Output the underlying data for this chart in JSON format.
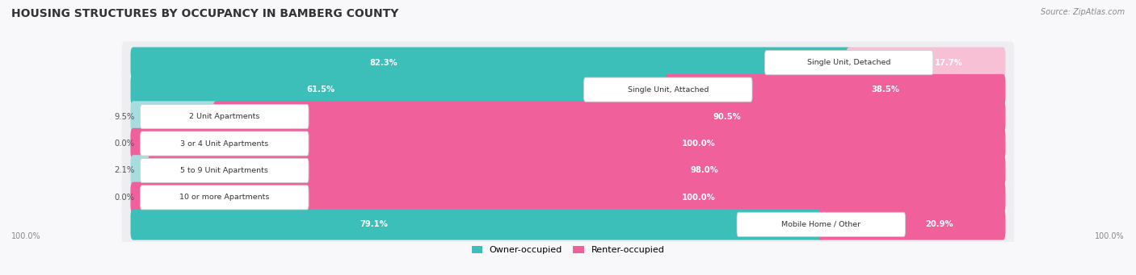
{
  "title": "HOUSING STRUCTURES BY OCCUPANCY IN BAMBERG COUNTY",
  "source": "Source: ZipAtlas.com",
  "categories": [
    "Single Unit, Detached",
    "Single Unit, Attached",
    "2 Unit Apartments",
    "3 or 4 Unit Apartments",
    "5 to 9 Unit Apartments",
    "10 or more Apartments",
    "Mobile Home / Other"
  ],
  "owner_values": [
    82.3,
    61.5,
    9.5,
    0.0,
    2.1,
    0.0,
    79.1
  ],
  "renter_values": [
    17.7,
    38.5,
    90.5,
    100.0,
    98.0,
    100.0,
    20.9
  ],
  "owner_color": "#3BBFB8",
  "renter_color": "#F0609A",
  "owner_color_light": "#A8DDE0",
  "renter_color_light": "#F8C0D4",
  "row_bg_color": "#EDEDF2",
  "figsize": [
    14.06,
    3.41
  ],
  "dpi": 100,
  "legend_owner_label": "Owner-occupied",
  "legend_renter_label": "Renter-occupied"
}
